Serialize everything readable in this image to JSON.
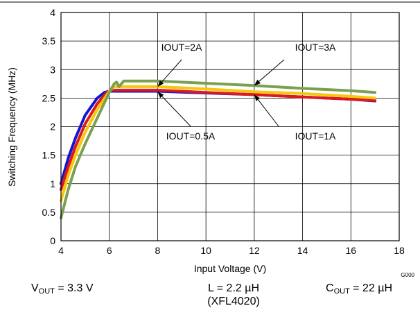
{
  "chart_data": {
    "type": "line",
    "title": "",
    "xlabel": "Input Voltage (V)",
    "ylabel": "Switching Frequency (MHz)",
    "xlim": [
      4,
      18
    ],
    "ylim": [
      0,
      4
    ],
    "xticks": [
      4,
      6,
      8,
      10,
      12,
      14,
      16,
      18
    ],
    "yticks": [
      0,
      0.5,
      1,
      1.5,
      2,
      2.5,
      3,
      3.5,
      4
    ],
    "xtick_labels": [
      "4",
      "6",
      "8",
      "10",
      "12",
      "14",
      "16",
      "18"
    ],
    "ytick_labels": [
      "0",
      "0.5",
      "1",
      "1.5",
      "2",
      "2.5",
      "3",
      "3.5",
      "4"
    ],
    "grid": true,
    "legend": "none",
    "figure_code": "G000",
    "series": [
      {
        "label": "IOUT=0.5A",
        "color": "#1414d2",
        "x": [
          4,
          4.3,
          4.6,
          5.0,
          5.5,
          5.8,
          6.0,
          8,
          10,
          12,
          14,
          16,
          17
        ],
        "y": [
          1.0,
          1.45,
          1.8,
          2.2,
          2.5,
          2.6,
          2.62,
          2.62,
          2.59,
          2.56,
          2.52,
          2.48,
          2.45
        ]
      },
      {
        "label": "IOUT=1A",
        "color": "#e01919",
        "x": [
          4,
          4.3,
          4.6,
          5.0,
          5.5,
          5.9,
          6.1,
          8,
          10,
          12,
          14,
          16,
          17
        ],
        "y": [
          0.9,
          1.3,
          1.65,
          2.05,
          2.4,
          2.6,
          2.64,
          2.64,
          2.6,
          2.56,
          2.52,
          2.48,
          2.46
        ]
      },
      {
        "label": "IOUT=2A",
        "color": "#f5c80a",
        "x": [
          4,
          4.3,
          4.6,
          5.0,
          5.5,
          6.0,
          6.2,
          8,
          10,
          12,
          14,
          16,
          17
        ],
        "y": [
          0.7,
          1.15,
          1.5,
          1.9,
          2.3,
          2.62,
          2.7,
          2.7,
          2.66,
          2.61,
          2.58,
          2.53,
          2.5
        ]
      },
      {
        "label": "IOUT=3A",
        "color": "#7aa050",
        "x": [
          4,
          4.3,
          4.6,
          5.0,
          5.5,
          6.0,
          6.2,
          6.3,
          6.4,
          6.6,
          8,
          10,
          12,
          14,
          16,
          17
        ],
        "y": [
          0.4,
          0.9,
          1.3,
          1.7,
          2.15,
          2.6,
          2.75,
          2.78,
          2.7,
          2.8,
          2.8,
          2.76,
          2.72,
          2.67,
          2.63,
          2.6
        ]
      }
    ],
    "annotations": [
      {
        "text": "IOUT=2A",
        "arrow_to": [
          8.0,
          2.7
        ]
      },
      {
        "text": "IOUT=3A",
        "arrow_to": [
          12.0,
          2.72
        ]
      },
      {
        "text": "IOUT=0.5A",
        "arrow_to": [
          8.0,
          2.61
        ]
      },
      {
        "text": "IOUT=1A",
        "arrow_to": [
          12.0,
          2.56
        ]
      }
    ]
  },
  "conditions": {
    "vout": {
      "symbol": "V",
      "sub": "OUT",
      "value": "= 3.3 V"
    },
    "inductor": {
      "line1": "L = 2.2 µH",
      "line2": "(XFL4020)"
    },
    "cout": {
      "symbol": "C",
      "sub": "OUT",
      "value": "= 22 µH"
    }
  }
}
